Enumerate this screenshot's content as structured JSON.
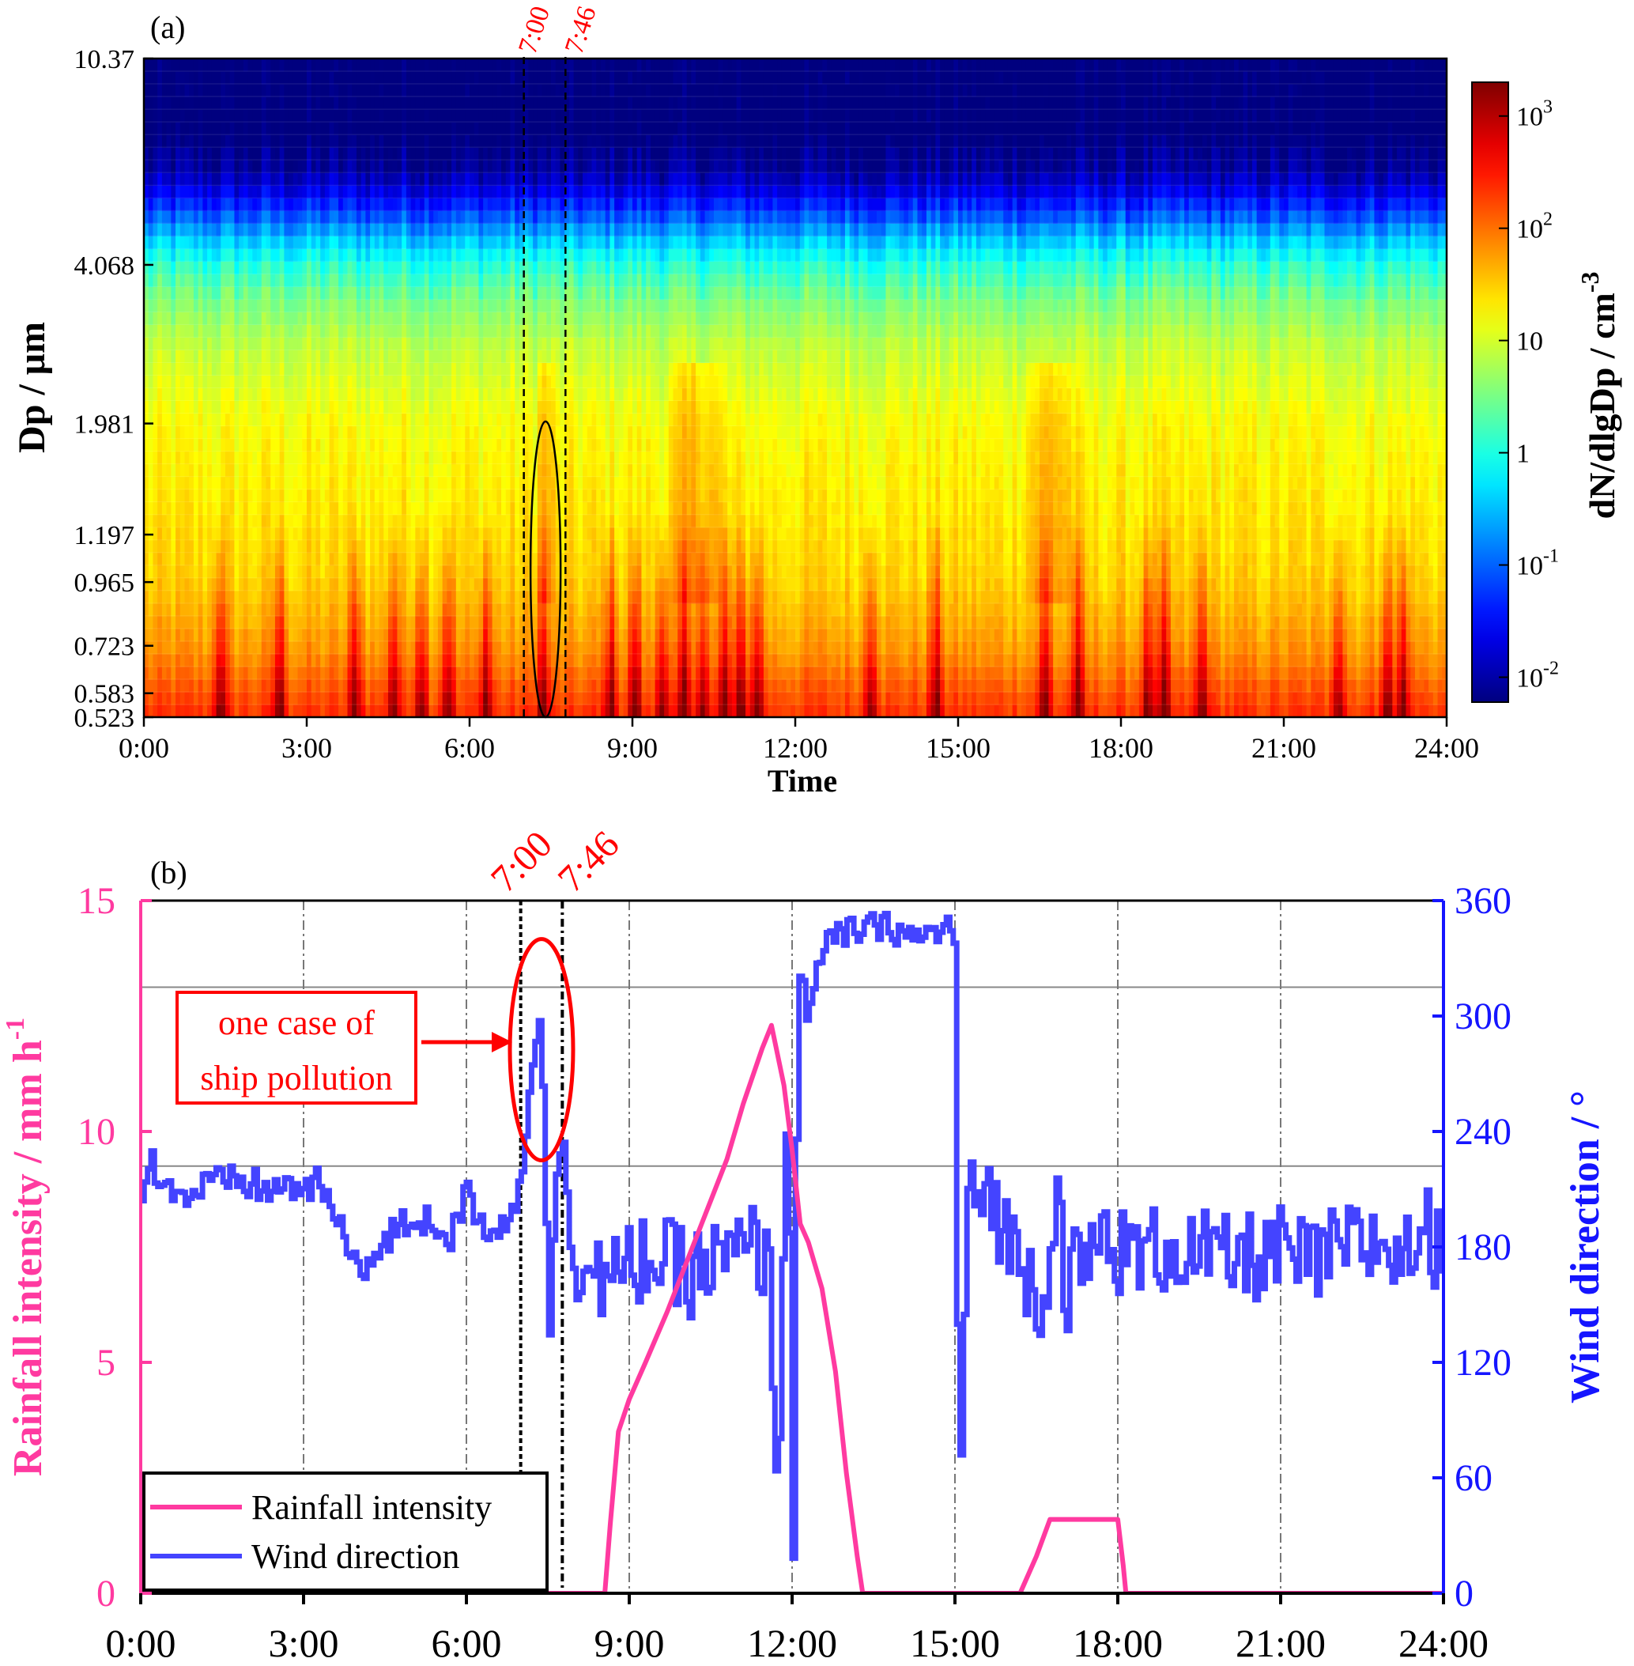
{
  "chart_data": [
    {
      "panel_label": "(a)",
      "type": "heatmap",
      "xlabel": "Time",
      "ylabel": "Dp / μm",
      "colorbar_label": "dN/dlgDp / cm",
      "colorbar_label_exp": "-3",
      "x_ticks": [
        "0:00",
        "3:00",
        "6:00",
        "9:00",
        "12:00",
        "15:00",
        "18:00",
        "21:00",
        "24:00"
      ],
      "x_range_hours": [
        0,
        24
      ],
      "y_scale": "log",
      "y_ticks": [
        "0.523",
        "0.583",
        "0.723",
        "0.965",
        "1.197",
        "1.981",
        "4.068",
        "10.37"
      ],
      "y_tick_values": [
        0.523,
        0.583,
        0.723,
        0.965,
        1.197,
        1.981,
        4.068,
        10.37
      ],
      "colorbar_scale": "log",
      "colorbar_range": [
        0.006,
        2000
      ],
      "colorbar_ticks": [
        {
          "value": 0.01,
          "base": "10",
          "exp": "-2"
        },
        {
          "value": 0.1,
          "base": "10",
          "exp": "-1"
        },
        {
          "value": 1,
          "base": "1",
          "exp": ""
        },
        {
          "value": 10,
          "base": "10",
          "exp": ""
        },
        {
          "value": 100,
          "base": "10",
          "exp": "2"
        },
        {
          "value": 1000,
          "base": "10",
          "exp": "3"
        }
      ],
      "colors": [
        "#00007f",
        "#0000ff",
        "#007fff",
        "#00ffff",
        "#7fff7f",
        "#ffff00",
        "#ff7f00",
        "#ff0000",
        "#7f0000"
      ],
      "event_lines": [
        {
          "time_h": 7.0,
          "label": "7:00"
        },
        {
          "time_h": 7.767,
          "label": "7:46"
        }
      ],
      "highlight_ellipse": {
        "time_center_h": 7.4,
        "dp_range": [
          0.523,
          2.0
        ]
      },
      "profile_log10_by_dp": [
        {
          "dp": 0.54,
          "log10": 2.3
        },
        {
          "dp": 0.6,
          "log10": 2.1
        },
        {
          "dp": 0.7,
          "log10": 1.8
        },
        {
          "dp": 0.85,
          "log10": 1.6
        },
        {
          "dp": 1.0,
          "log10": 1.45
        },
        {
          "dp": 1.3,
          "log10": 1.35
        },
        {
          "dp": 1.98,
          "log10": 1.2
        },
        {
          "dp": 2.8,
          "log10": 0.9
        },
        {
          "dp": 3.5,
          "log10": 0.5
        },
        {
          "dp": 4.07,
          "log10": 0.05
        },
        {
          "dp": 4.6,
          "log10": -0.5
        },
        {
          "dp": 5.0,
          "log10": -1.0
        },
        {
          "dp": 5.6,
          "log10": -1.6
        },
        {
          "dp": 6.3,
          "log10": -2.1
        },
        {
          "dp": 7.5,
          "log10": -2.3
        },
        {
          "dp": 10.37,
          "log10": -2.3
        }
      ],
      "fine_mode_peaks_h": [
        1.4,
        2.5,
        3.9,
        4.6,
        5.1,
        5.6,
        6.3,
        7.35,
        8.6,
        9.05,
        9.55,
        9.95,
        10.3,
        10.7,
        11.0,
        11.3,
        13.4,
        14.6,
        16.6,
        17.2,
        18.5,
        18.8,
        19.5,
        22.0,
        22.9,
        23.2
      ],
      "coarse_bright_h": [
        [
          16.1,
          17.3
        ],
        [
          9.6,
          10.8
        ],
        [
          7.2,
          7.6
        ]
      ]
    },
    {
      "panel_label": "(b)",
      "type": "line",
      "xlabel": "",
      "x_ticks": [
        "0:00",
        "3:00",
        "6:00",
        "9:00",
        "12:00",
        "15:00",
        "18:00",
        "21:00",
        "24:00"
      ],
      "x_range_hours": [
        0,
        24
      ],
      "y_left": {
        "label": "Rainfall intensity / mm h",
        "label_exp": "-1",
        "range": [
          0,
          15
        ],
        "ticks": [
          0,
          5,
          10,
          15
        ],
        "color": "#ff3aa0"
      },
      "y_right": {
        "label": "Wind direction / °",
        "range": [
          0,
          360
        ],
        "ticks": [
          0,
          60,
          120,
          180,
          240,
          300,
          360
        ],
        "color": "#1515ff"
      },
      "reference_lines_deg": [
        222,
        315
      ],
      "event_lines": [
        {
          "time_h": 7.0,
          "label": "7:00"
        },
        {
          "time_h": 7.767,
          "label": "7:46"
        }
      ],
      "annotation": {
        "lines": [
          "one case of",
          "ship pollution"
        ],
        "color": "#ff0000"
      },
      "legend": {
        "position": "bottom-left",
        "entries": [
          "Rainfall intensity",
          "Wind direction"
        ]
      },
      "series": [
        {
          "name": "Rainfall intensity",
          "axis": "left",
          "color": "#ff3aa0",
          "points": [
            [
              0,
              0
            ],
            [
              8.55,
              0
            ],
            [
              8.65,
              1.5
            ],
            [
              8.8,
              3.5
            ],
            [
              9.0,
              4.2
            ],
            [
              9.3,
              5.0
            ],
            [
              9.7,
              6.1
            ],
            [
              10.1,
              7.3
            ],
            [
              10.5,
              8.5
            ],
            [
              10.8,
              9.4
            ],
            [
              11.1,
              10.6
            ],
            [
              11.45,
              11.8
            ],
            [
              11.62,
              12.3
            ],
            [
              11.85,
              11.0
            ],
            [
              12.0,
              9.6
            ],
            [
              12.15,
              8.0
            ],
            [
              12.3,
              7.6
            ],
            [
              12.55,
              6.6
            ],
            [
              12.8,
              4.8
            ],
            [
              13.0,
              2.6
            ],
            [
              13.2,
              0.8
            ],
            [
              13.3,
              0
            ],
            [
              16.2,
              0
            ],
            [
              16.5,
              0.8
            ],
            [
              16.75,
              1.6
            ],
            [
              18.0,
              1.6
            ],
            [
              18.1,
              0.6
            ],
            [
              18.15,
              0
            ],
            [
              24,
              0
            ]
          ]
        },
        {
          "name": "Wind direction",
          "axis": "right",
          "color": "#1515ff",
          "keyframes": [
            [
              0,
              210
            ],
            [
              0.15,
              225
            ],
            [
              0.7,
              205
            ],
            [
              1.2,
              212
            ],
            [
              1.8,
              214
            ],
            [
              2.3,
              210
            ],
            [
              3.3,
              212
            ],
            [
              3.8,
              178
            ],
            [
              4.2,
              170
            ],
            [
              4.6,
              186
            ],
            [
              5.0,
              195
            ],
            [
              5.4,
              192
            ],
            [
              5.7,
              185
            ],
            [
              6.0,
              208
            ],
            [
              6.3,
              190
            ],
            [
              6.8,
              194
            ],
            [
              7.0,
              220
            ],
            [
              7.15,
              270
            ],
            [
              7.35,
              305
            ],
            [
              7.5,
              130
            ],
            [
              7.62,
              210
            ],
            [
              7.75,
              245
            ],
            [
              7.9,
              180
            ],
            [
              8.1,
              170
            ],
            [
              8.4,
              165
            ],
            [
              8.8,
              162
            ],
            [
              9.2,
              175
            ],
            [
              9.6,
              172
            ],
            [
              10.0,
              166
            ],
            [
              10.5,
              170
            ],
            [
              11.0,
              176
            ],
            [
              11.3,
              180
            ],
            [
              11.55,
              168
            ],
            [
              11.72,
              40
            ],
            [
              11.82,
              190
            ],
            [
              11.9,
              272
            ],
            [
              12.0,
              20
            ],
            [
              12.05,
              200
            ],
            [
              12.1,
              335
            ],
            [
              12.25,
              300
            ],
            [
              12.35,
              318
            ],
            [
              12.7,
              340
            ],
            [
              13.2,
              345
            ],
            [
              13.8,
              346
            ],
            [
              14.3,
              340
            ],
            [
              14.9,
              347
            ],
            [
              15.0,
              338
            ],
            [
              15.05,
              15
            ],
            [
              15.2,
              200
            ],
            [
              15.6,
              210
            ],
            [
              16.0,
              180
            ],
            [
              16.5,
              160
            ],
            [
              16.9,
              200
            ],
            [
              17.2,
              150
            ],
            [
              17.6,
              185
            ],
            [
              18.2,
              175
            ],
            [
              19.0,
              180
            ],
            [
              20.0,
              172
            ],
            [
              21.0,
              178
            ],
            [
              21.5,
              170
            ],
            [
              22.2,
              180
            ],
            [
              22.8,
              182
            ],
            [
              23.3,
              175
            ],
            [
              23.6,
              190
            ],
            [
              23.9,
              180
            ],
            [
              24.0,
              178
            ]
          ]
        }
      ]
    }
  ]
}
